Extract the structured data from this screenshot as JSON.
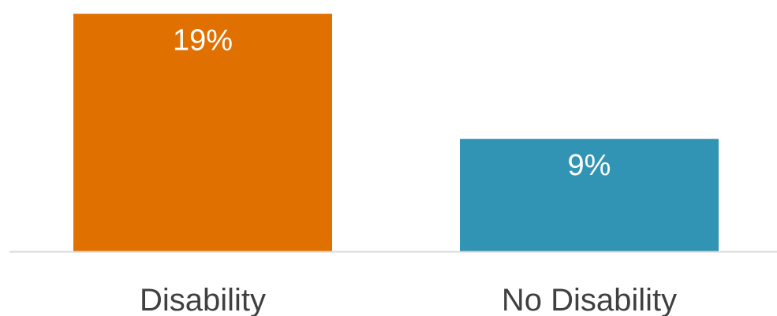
{
  "chart_data": {
    "type": "bar",
    "title": "",
    "xlabel": "",
    "ylabel": "",
    "categories": [
      "Disability",
      "No Disability"
    ],
    "values": [
      19,
      9
    ],
    "value_labels": [
      "19%",
      "9%"
    ],
    "colors": [
      "#E07000",
      "#3294B4"
    ],
    "ylim": [
      0,
      19.6
    ],
    "grid": false,
    "legend": "none"
  }
}
